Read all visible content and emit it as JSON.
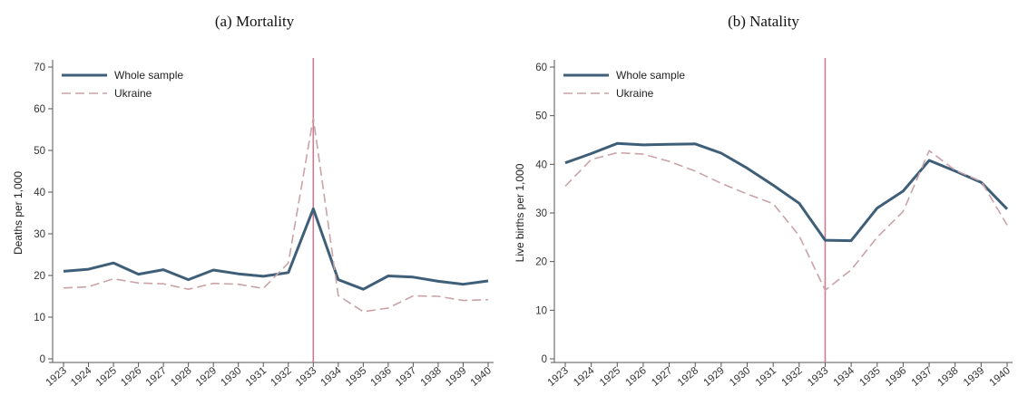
{
  "chart_data": [
    {
      "type": "line",
      "caption": "(a) Mortality",
      "ylabel": "Deaths per 1,000",
      "xlabel": "",
      "ylim": [
        0,
        70
      ],
      "yticks": [
        0,
        10,
        20,
        30,
        40,
        50,
        60,
        70
      ],
      "x": [
        "1923",
        "1924",
        "1925",
        "1926",
        "1927",
        "1928",
        "1929",
        "1930",
        "1931",
        "1932",
        "1933",
        "1934",
        "1935",
        "1936",
        "1937",
        "1938",
        "1939",
        "1940"
      ],
      "vline": "1933",
      "legend_position": "top-left",
      "colors": {
        "whole": "#3f5f78",
        "ukraine": "#c9a3a8",
        "vline": "#c97d94"
      },
      "series": [
        {
          "name": "Whole sample",
          "style": "solid",
          "values": [
            21,
            21.5,
            23,
            20.3,
            21.4,
            19,
            21.3,
            20.4,
            19.8,
            20.7,
            36,
            19,
            16.7,
            19.9,
            19.6,
            18.6,
            17.9,
            18.7
          ]
        },
        {
          "name": "Ukraine",
          "style": "dashed",
          "values": [
            17,
            17.3,
            19.2,
            18.2,
            18,
            16.7,
            18.1,
            17.9,
            16.9,
            23,
            57.8,
            15.2,
            11.3,
            12.2,
            15.1,
            15,
            14,
            14.2
          ]
        }
      ]
    },
    {
      "type": "line",
      "caption": "(b) Natality",
      "ylabel": "Live births per 1,000",
      "xlabel": "",
      "ylim": [
        0,
        60
      ],
      "yticks": [
        0,
        10,
        20,
        30,
        40,
        50,
        60
      ],
      "x": [
        "1923",
        "1924",
        "1925",
        "1926",
        "1927",
        "1928",
        "1929",
        "1930",
        "1931",
        "1932",
        "1933",
        "1934",
        "1935",
        "1936",
        "1937",
        "1938",
        "1939",
        "1940"
      ],
      "vline": "1933",
      "legend_position": "top-left",
      "colors": {
        "whole": "#3f5f78",
        "ukraine": "#c9a3a8",
        "vline": "#c97d94"
      },
      "series": [
        {
          "name": "Whole sample",
          "style": "solid",
          "values": [
            40.3,
            42.2,
            44.3,
            44,
            44.1,
            44.2,
            42.3,
            39.2,
            35.7,
            32,
            24.4,
            24.3,
            31,
            34.5,
            40.8,
            38.6,
            36.3,
            30.8
          ]
        },
        {
          "name": "Ukraine",
          "style": "dashed",
          "values": [
            35.5,
            41,
            42.4,
            42.1,
            40.6,
            38.6,
            36.1,
            33.9,
            31.9,
            25.3,
            14.1,
            18.3,
            25,
            30.3,
            42.8,
            38.8,
            36.5,
            27.5
          ]
        }
      ]
    }
  ]
}
